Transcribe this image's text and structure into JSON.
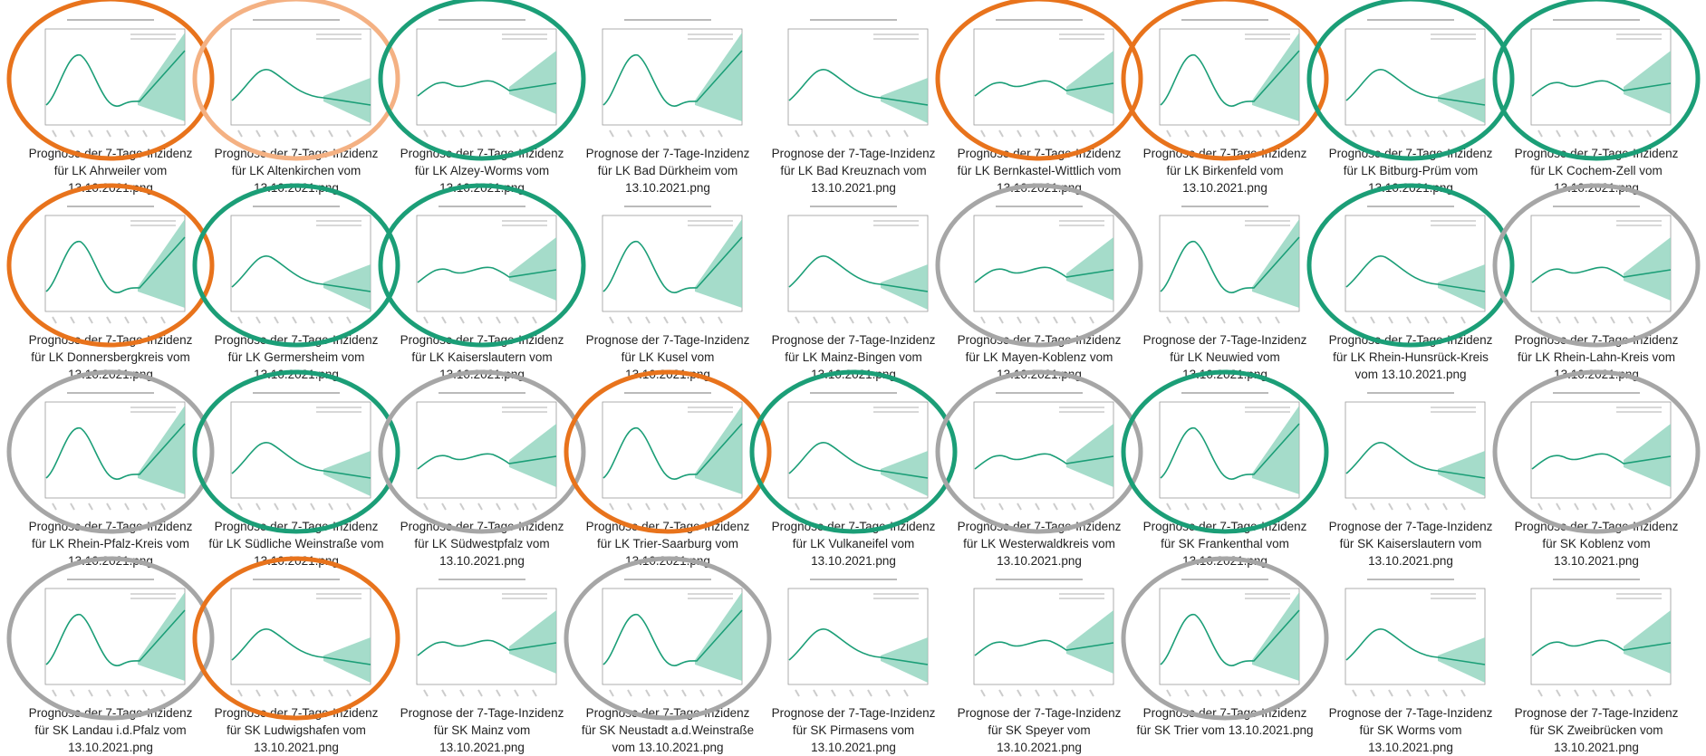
{
  "files": [
    {
      "name": "Prognose der 7-Tage-Inzidenz für LK Ahrweiler vom 13.10.2021.png",
      "circle": "#e8731c"
    },
    {
      "name": "Prognose der 7-Tage-Inzidenz für LK Altenkirchen vom 13.10.2021.png",
      "circle": "#f4b183"
    },
    {
      "name": "Prognose der 7-Tage-Inzidenz für LK Alzey-Worms vom 13.10.2021.png",
      "circle": "#1b9e77"
    },
    {
      "name": "Prognose der 7-Tage-Inzidenz für LK Bad Dürkheim vom 13.10.2021.png"
    },
    {
      "name": "Prognose der 7-Tage-Inzidenz für LK Bad Kreuznach vom 13.10.2021.png"
    },
    {
      "name": "Prognose der 7-Tage-Inzidenz für LK Bernkastel-Wittlich vom 13.10.2021.png",
      "circle": "#e8731c"
    },
    {
      "name": "Prognose der 7-Tage-Inzidenz für LK Birkenfeld vom 13.10.2021.png",
      "circle": "#e8731c"
    },
    {
      "name": "Prognose der 7-Tage-Inzidenz für LK Bitburg-Prüm vom 13.10.2021.png",
      "circle": "#1b9e77"
    },
    {
      "name": "Prognose der 7-Tage-Inzidenz für LK Cochem-Zell vom 13.10.2021.png",
      "circle": "#1b9e77"
    },
    {
      "name": "Prognose der 7-Tage-Inzidenz für LK Donnersbergkreis vom 13.10.2021.png",
      "circle": "#e8731c"
    },
    {
      "name": "Prognose der 7-Tage-Inzidenz für LK Germersheim vom 13.10.2021.png",
      "circle": "#1b9e77"
    },
    {
      "name": "Prognose der 7-Tage-Inzidenz für LK Kaiserslautern vom 13.10.2021.png",
      "circle": "#1b9e77"
    },
    {
      "name": "Prognose der 7-Tage-Inzidenz für LK Kusel vom 13.10.2021.png"
    },
    {
      "name": "Prognose der 7-Tage-Inzidenz für LK Mainz-Bingen vom 13.10.2021.png"
    },
    {
      "name": "Prognose der 7-Tage-Inzidenz für LK Mayen-Koblenz vom 13.10.2021.png",
      "circle": "#a6a6a6"
    },
    {
      "name": "Prognose der 7-Tage-Inzidenz für LK Neuwied vom 13.10.2021.png"
    },
    {
      "name": "Prognose der 7-Tage-Inzidenz für LK Rhein-Hunsrück-Kreis vom 13.10.2021.png",
      "circle": "#1b9e77"
    },
    {
      "name": "Prognose der 7-Tage-Inzidenz für LK Rhein-Lahn-Kreis vom 13.10.2021.png",
      "circle": "#a6a6a6"
    },
    {
      "name": "Prognose der 7-Tage-Inzidenz für LK Rhein-Pfalz-Kreis vom 13.10.2021.png",
      "circle": "#a6a6a6"
    },
    {
      "name": "Prognose der 7-Tage-Inzidenz für LK Südliche Weinstraße vom 13.10.2021.png",
      "circle": "#1b9e77"
    },
    {
      "name": "Prognose der 7-Tage-Inzidenz für LK Südwestpfalz vom 13.10.2021.png",
      "circle": "#a6a6a6"
    },
    {
      "name": "Prognose der 7-Tage-Inzidenz für LK Trier-Saarburg vom 13.10.2021.png",
      "circle": "#e8731c"
    },
    {
      "name": "Prognose der 7-Tage-Inzidenz für LK Vulkaneifel vom 13.10.2021.png",
      "circle": "#1b9e77"
    },
    {
      "name": "Prognose der 7-Tage-Inzidenz für LK Westerwaldkreis vom 13.10.2021.png",
      "circle": "#a6a6a6"
    },
    {
      "name": "Prognose der 7-Tage-Inzidenz für SK Frankenthal vom 13.10.2021.png",
      "circle": "#1b9e77"
    },
    {
      "name": "Prognose der 7-Tage-Inzidenz für SK Kaiserslautern vom 13.10.2021.png"
    },
    {
      "name": "Prognose der 7-Tage-Inzidenz für SK Koblenz vom 13.10.2021.png",
      "circle": "#a6a6a6"
    },
    {
      "name": "Prognose der 7-Tage-Inzidenz für SK Landau i.d.Pfalz vom 13.10.2021.png",
      "circle": "#a6a6a6"
    },
    {
      "name": "Prognose der 7-Tage-Inzidenz für SK Ludwigshafen vom 13.10.2021.png",
      "circle": "#e8731c"
    },
    {
      "name": "Prognose der 7-Tage-Inzidenz für SK Mainz vom 13.10.2021.png"
    },
    {
      "name": "Prognose der 7-Tage-Inzidenz für SK Neustadt a.d.Weinstraße vom 13.10.2021.png",
      "circle": "#a6a6a6"
    },
    {
      "name": "Prognose der 7-Tage-Inzidenz für SK Pirmasens vom 13.10.2021.png"
    },
    {
      "name": "Prognose der 7-Tage-Inzidenz für SK Speyer vom 13.10.2021.png"
    },
    {
      "name": "Prognose der 7-Tage-Inzidenz für SK Trier vom 13.10.2021.png",
      "circle": "#a6a6a6"
    },
    {
      "name": "Prognose der 7-Tage-Inzidenz für SK Worms vom 13.10.2021.png"
    },
    {
      "name": "Prognose der 7-Tage-Inzidenz für SK Zweibrücken vom 13.10.2021.png"
    }
  ]
}
